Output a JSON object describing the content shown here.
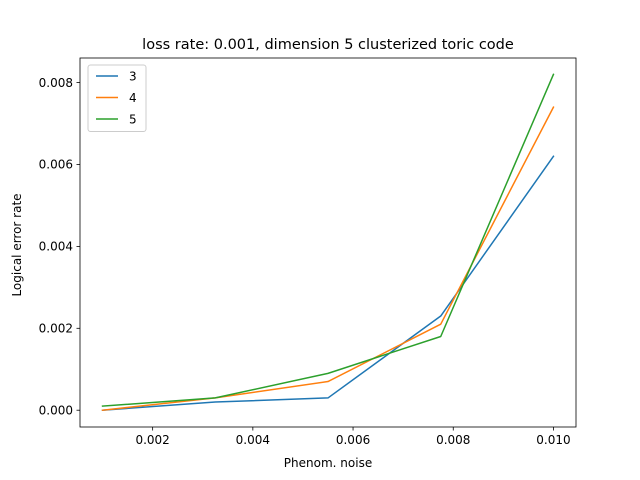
{
  "chart_data": {
    "type": "line",
    "title": "loss rate: 0.001, dimension 5 clusterized toric code",
    "xlabel": "Phenom. noise",
    "ylabel": "Logical error rate",
    "xlim": [
      0.00055,
      0.01045
    ],
    "ylim": [
      -0.00041,
      0.0086
    ],
    "xticks": [
      0.002,
      0.004,
      0.006,
      0.008,
      0.01
    ],
    "xtick_labels": [
      "0.002",
      "0.004",
      "0.006",
      "0.008",
      "0.010"
    ],
    "yticks": [
      0.0,
      0.002,
      0.004,
      0.006,
      0.008
    ],
    "ytick_labels": [
      "0.000",
      "0.002",
      "0.004",
      "0.006",
      "0.008"
    ],
    "grid": false,
    "legend_position": "top-left",
    "x": [
      0.001,
      0.00325,
      0.0055,
      0.00775,
      0.01
    ],
    "series": [
      {
        "name": "3",
        "color": "#1f77b4",
        "values": [
          0.0,
          0.0002,
          0.0003,
          0.0023,
          0.0062
        ]
      },
      {
        "name": "4",
        "color": "#ff7f0e",
        "values": [
          0.0,
          0.0003,
          0.0007,
          0.0021,
          0.0074
        ]
      },
      {
        "name": "5",
        "color": "#2ca02c",
        "values": [
          0.0001,
          0.0003,
          0.0009,
          0.0018,
          0.0082
        ]
      }
    ]
  }
}
